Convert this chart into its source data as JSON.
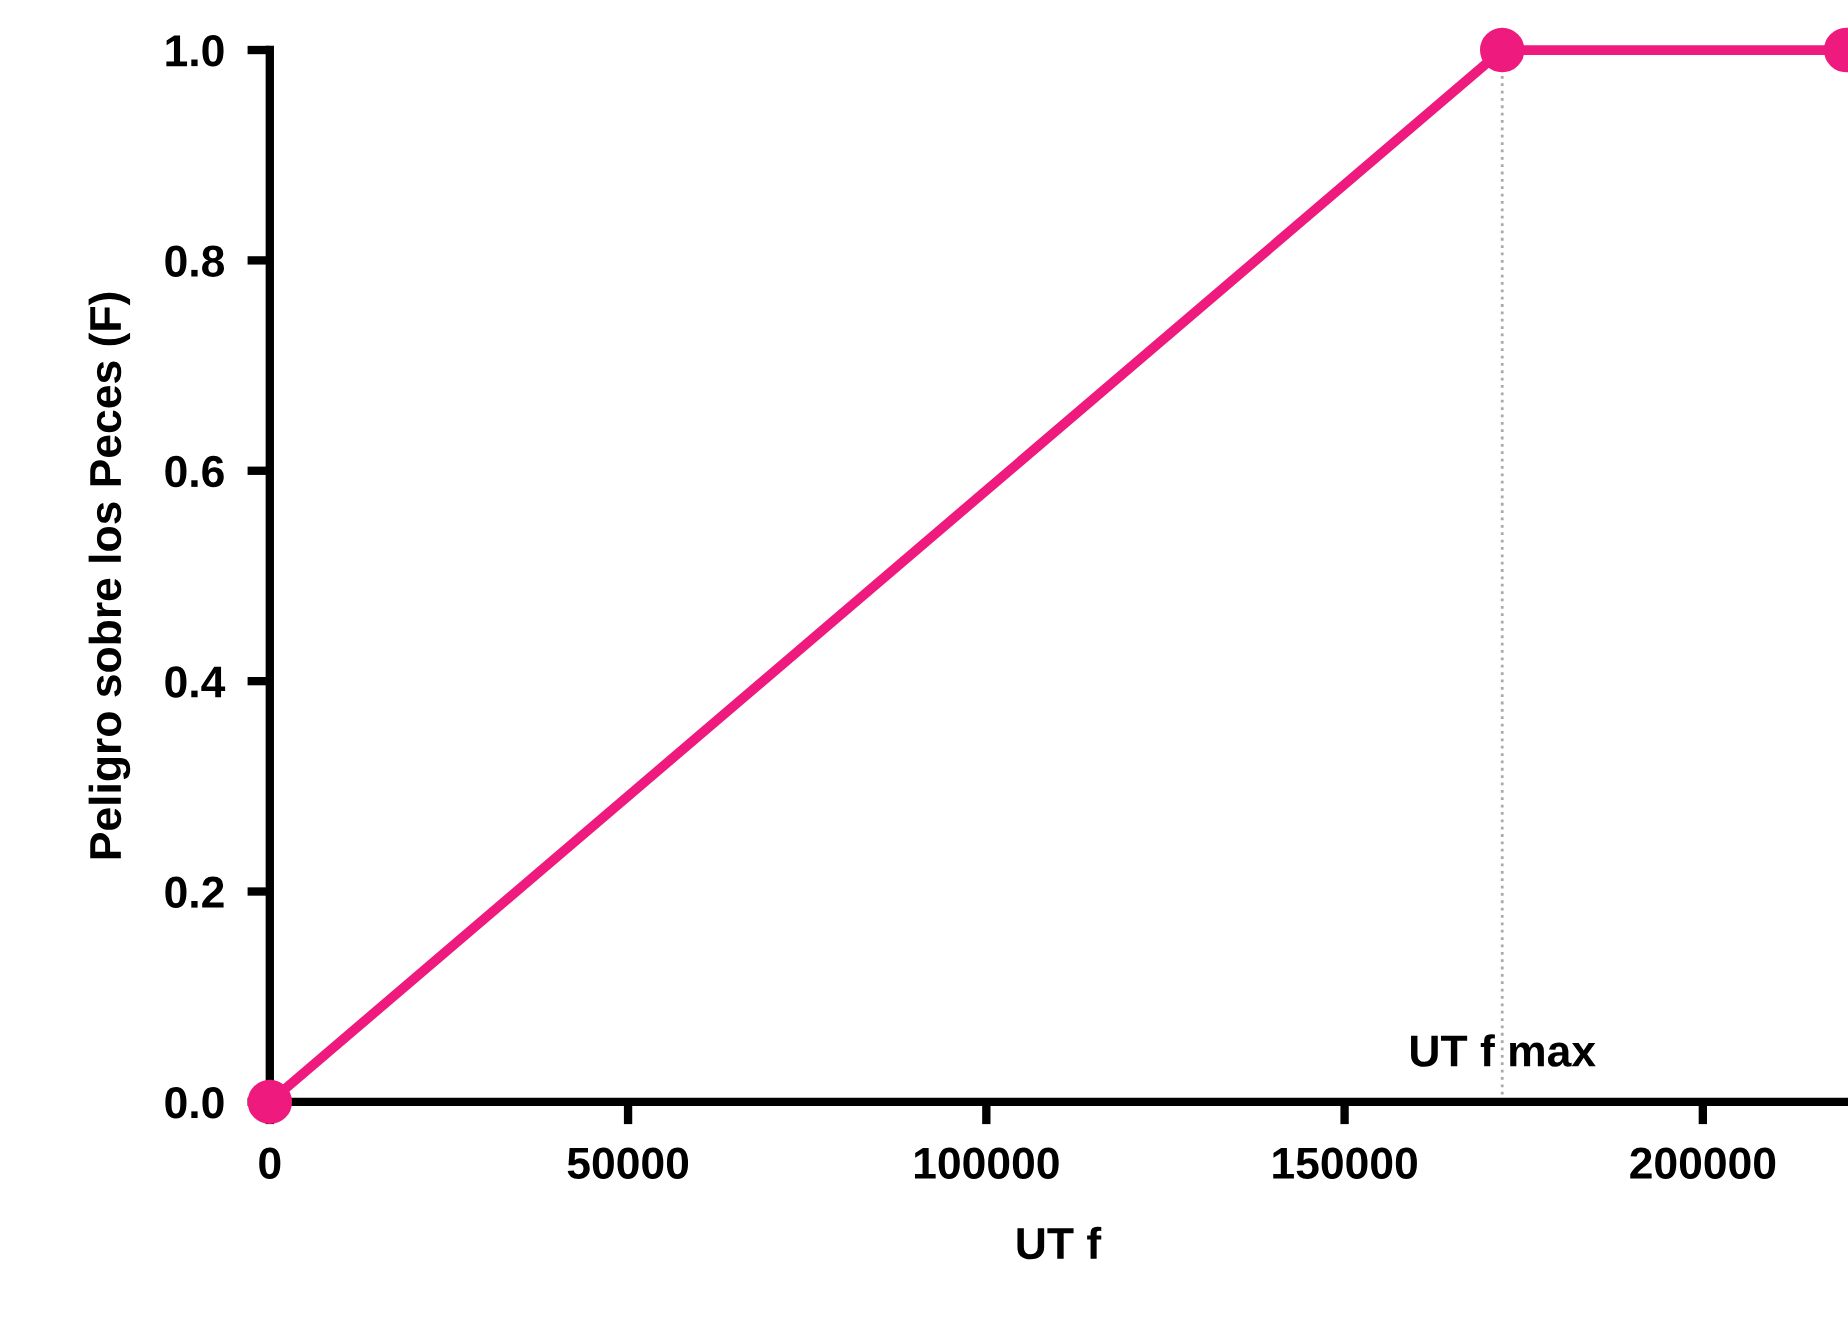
{
  "chart_data": {
    "type": "line",
    "xlabel": "UT f",
    "ylabel": "Peligro sobre los Peces (F)",
    "x": [
      0,
      172000,
      220000
    ],
    "series": [
      {
        "color": "#ef1a7e",
        "values": [
          0,
          1,
          1
        ]
      }
    ],
    "xlim": [
      0,
      220000
    ],
    "ylim": [
      0,
      1
    ],
    "xticks": [
      0,
      50000,
      100000,
      150000,
      200000
    ],
    "yticks": [
      {
        "value": 0,
        "label": "0.0"
      },
      {
        "value": 0.2,
        "label": "0.2"
      },
      {
        "value": 0.4,
        "label": "0.4"
      },
      {
        "value": 0.6,
        "label": "0.6"
      },
      {
        "value": 0.8,
        "label": "0.8"
      },
      {
        "value": 1,
        "label": "1.0"
      }
    ],
    "ref_lines": [
      {
        "axis": "x",
        "value": 172000,
        "label": "UT f max",
        "color": "#aaaaaa",
        "line_style": "dotted"
      }
    ],
    "marker": "circle",
    "line_style": "solid",
    "grid": false,
    "legend": false
  }
}
